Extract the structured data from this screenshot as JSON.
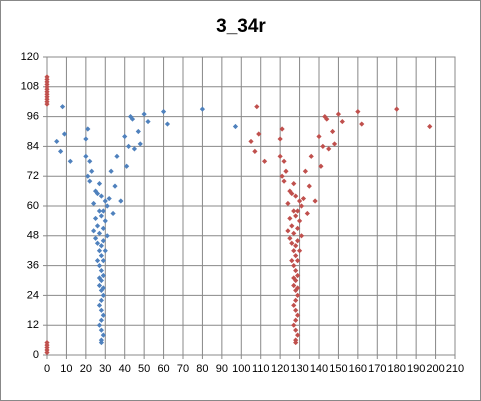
{
  "chart_data": {
    "type": "scatter",
    "title": "3_34r",
    "xlim": [
      0,
      210
    ],
    "xticks": [
      0,
      10,
      20,
      30,
      40,
      50,
      60,
      70,
      80,
      90,
      100,
      110,
      120,
      130,
      140,
      150,
      160,
      170,
      180,
      190,
      200,
      210
    ],
    "ylim": [
      0,
      120
    ],
    "yticks": [
      0,
      12,
      24,
      36,
      48,
      60,
      72,
      84,
      96,
      108,
      120
    ],
    "grid": true,
    "series": [
      {
        "color": "#4f81bd",
        "x": [
          5,
          8,
          7,
          9,
          12,
          20,
          21,
          20,
          21,
          22,
          23,
          24,
          25,
          22,
          26,
          27,
          28,
          29,
          30,
          31,
          32,
          33,
          35,
          36,
          40,
          41,
          42,
          43,
          44,
          45,
          47,
          48,
          50,
          52,
          60,
          62,
          80,
          97,
          38,
          34,
          25,
          26,
          24,
          25,
          27,
          29,
          30,
          31,
          26,
          28,
          29,
          27,
          28,
          29,
          27,
          28,
          29,
          28,
          27,
          28,
          29,
          28,
          27,
          28,
          29,
          28,
          27,
          28,
          29,
          28,
          28,
          27,
          29,
          26,
          30,
          28,
          27
        ],
        "values": [
          86,
          100,
          82,
          89,
          78,
          87,
          91,
          80,
          72,
          70,
          74,
          61,
          66,
          78,
          65,
          69,
          64,
          58,
          62,
          60,
          63,
          74,
          68,
          80,
          88,
          76,
          84,
          96,
          95,
          83,
          90,
          85,
          97,
          94,
          98,
          93,
          99,
          92,
          62,
          57,
          55,
          52,
          50,
          47,
          49,
          51,
          54,
          48,
          45,
          44,
          46,
          42,
          40,
          38,
          36,
          34,
          32,
          30,
          28,
          26,
          24,
          22,
          20,
          18,
          16,
          14,
          12,
          10,
          8,
          6,
          5,
          31,
          27,
          38,
          42,
          56,
          58
        ]
      },
      {
        "color": "#c0504d",
        "x": [
          105,
          108,
          107,
          109,
          112,
          120,
          121,
          120,
          121,
          122,
          123,
          124,
          125,
          122,
          126,
          127,
          128,
          129,
          130,
          131,
          132,
          133,
          135,
          136,
          140,
          141,
          142,
          143,
          144,
          145,
          147,
          148,
          150,
          152,
          160,
          162,
          180,
          197,
          138,
          134,
          125,
          126,
          124,
          125,
          127,
          129,
          130,
          131,
          126,
          128,
          129,
          127,
          128,
          129,
          127,
          128,
          129,
          128,
          127,
          128,
          129,
          128,
          127,
          128,
          129,
          128,
          127,
          128,
          129,
          128,
          128,
          127,
          129,
          126,
          130,
          128,
          127,
          0,
          0,
          0,
          0,
          0,
          0,
          0,
          0,
          0,
          0,
          0,
          0,
          0,
          0,
          0,
          0,
          0
        ],
        "values": [
          86,
          100,
          82,
          89,
          78,
          87,
          91,
          80,
          72,
          70,
          74,
          61,
          66,
          78,
          65,
          69,
          64,
          58,
          62,
          60,
          63,
          74,
          68,
          80,
          88,
          76,
          84,
          96,
          95,
          83,
          90,
          85,
          97,
          94,
          98,
          93,
          99,
          92,
          62,
          57,
          55,
          52,
          50,
          47,
          49,
          51,
          54,
          48,
          45,
          44,
          46,
          42,
          40,
          38,
          36,
          34,
          32,
          30,
          28,
          26,
          24,
          22,
          20,
          18,
          16,
          14,
          12,
          10,
          8,
          6,
          5,
          31,
          27,
          38,
          42,
          56,
          58,
          112,
          111,
          110,
          109,
          108,
          107,
          106,
          105,
          104,
          103,
          102,
          101,
          5,
          4,
          3,
          2,
          1
        ]
      }
    ]
  }
}
